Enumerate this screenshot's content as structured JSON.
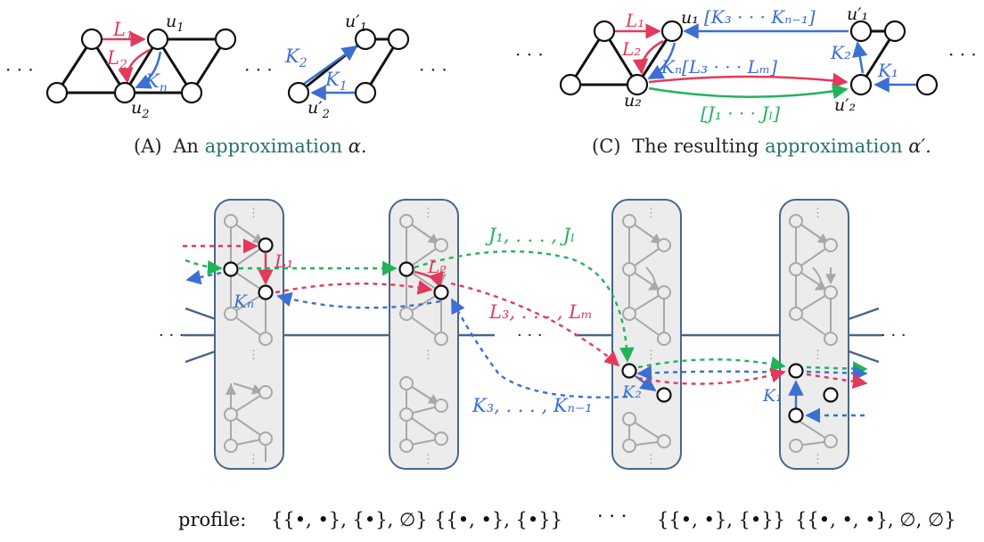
{
  "colors": {
    "red": "#e23a5b",
    "blue": "#3c6fd4",
    "green": "#22b35a",
    "gray": "#a8a8a8",
    "edge": "#4a6688",
    "text": "#222222"
  },
  "panel_a": {
    "dots_left": "· · ·",
    "dots_mid": "· · ·",
    "dots_right": "· · ·",
    "label_L1": "L",
    "label_L1_sub": "1",
    "label_L2": "L",
    "label_L2_sub": "2",
    "label_Kn": "K",
    "label_Kn_sub": "n",
    "label_u1": "u",
    "label_u1_sub": "1",
    "label_u2": "u",
    "label_u2_sub": "2",
    "label_u1p": "u′",
    "label_u1p_sub": "1",
    "label_u2p": "u′",
    "label_u2p_sub": "2",
    "label_K1": "K",
    "label_K1_sub": "1",
    "label_K2": "K",
    "label_K2_sub": "2",
    "caption_tag": "(A)",
    "caption_pre": "An",
    "caption_link": "approximation",
    "caption_var": "α."
  },
  "panel_c": {
    "dots_left": "· · ·",
    "dots_right": "· · ·",
    "label_K3_Kn1": "[K₃ · · · Kₙ₋₁]",
    "label_Kn_L": "Kₙ[L₃ · · · Lₘ]",
    "label_J": "[J₁ · · · Jₗ]",
    "label_L1": "L₁",
    "label_L2": "L₂",
    "label_K1": "K₁",
    "label_K2": "K₂",
    "label_u1": "u₁",
    "label_u2": "u₂",
    "label_u1p": "u′₁",
    "label_u2p": "u′₂",
    "caption_tag": "(C)",
    "caption_pre": "The resulting",
    "caption_link": "approximation",
    "caption_var": "α′."
  },
  "bottom": {
    "dots_left": "· · ·",
    "dots_mid": "· · ·",
    "dots_right": "· · ·",
    "label_J": "J₁, . . . , Jₗ",
    "label_L1": "L₁",
    "label_L2": "L₂",
    "label_Kn": "Kₙ",
    "label_L3_Lm": "L₃, . . . , Lₘ",
    "label_K3_Kn1": "K₃, . . . , Kₙ₋₁",
    "label_K2": "K₂",
    "label_K1": "K₁",
    "ellipsis": "⋮"
  },
  "profile": {
    "label": "profile:",
    "p1": "{{•, •}, {•}, ∅}",
    "p2": "{{•, •}, {•}}",
    "dots": "· · ·",
    "p3": "{{•, •}, {•}}",
    "p4": "{{•, •, •}, ∅, ∅}"
  }
}
